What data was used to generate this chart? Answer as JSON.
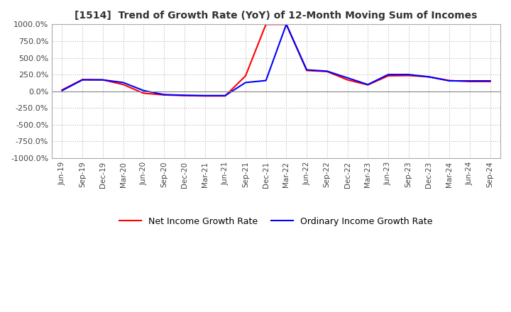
{
  "title": "[1514]  Trend of Growth Rate (YoY) of 12-Month Moving Sum of Incomes",
  "ylim": [
    -1000,
    1000
  ],
  "yticks": [
    -1000,
    -750,
    -500,
    -250,
    0,
    250,
    500,
    750,
    1000
  ],
  "line1_color": "#0000FF",
  "line2_color": "#FF0000",
  "line1_label": "Ordinary Income Growth Rate",
  "line2_label": "Net Income Growth Rate",
  "background_color": "#FFFFFF",
  "grid_color": "#BBBBBB",
  "dates": [
    "Jun-19",
    "Sep-19",
    "Dec-19",
    "Mar-20",
    "Jun-20",
    "Sep-20",
    "Dec-20",
    "Mar-21",
    "Jun-21",
    "Sep-21",
    "Dec-21",
    "Mar-22",
    "Jun-22",
    "Sep-22",
    "Dec-22",
    "Mar-23",
    "Jun-23",
    "Sep-23",
    "Dec-23",
    "Mar-24",
    "Jun-24",
    "Sep-24"
  ],
  "ordinary_income": [
    10,
    170,
    170,
    130,
    10,
    -50,
    -60,
    -65,
    -65,
    130,
    160,
    1000,
    320,
    300,
    200,
    100,
    250,
    250,
    215,
    155,
    155,
    155
  ],
  "net_income": [
    20,
    175,
    170,
    100,
    -30,
    -55,
    -65,
    -70,
    -70,
    230,
    1000,
    1000,
    310,
    295,
    170,
    95,
    230,
    235,
    215,
    160,
    145,
    145
  ]
}
